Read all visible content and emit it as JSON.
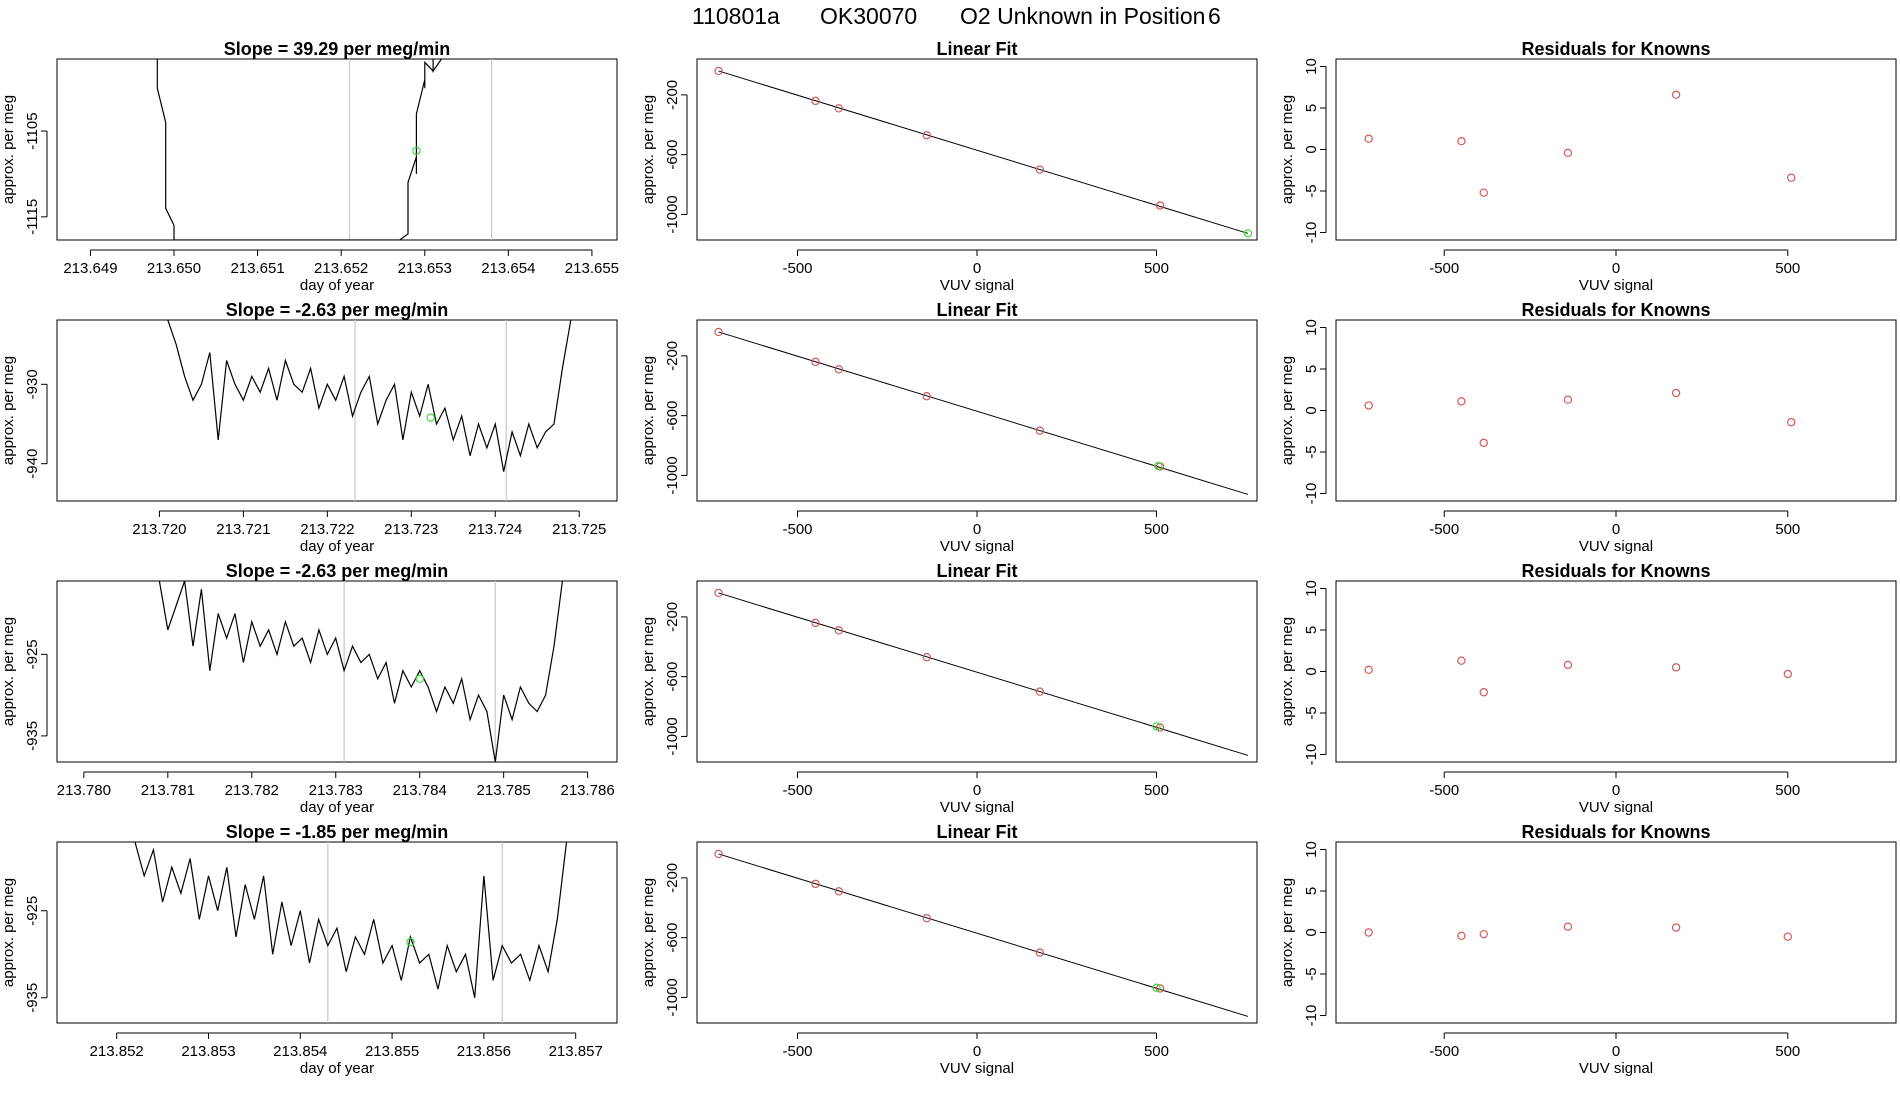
{
  "title": {
    "run_id": "110801a",
    "tank_id": "OK30070",
    "description": "O2 Unknown in Position",
    "position": "6"
  },
  "chart_data": [
    {
      "row": 1,
      "time_series": {
        "type": "line",
        "title": "Slope =  39.29  per meg/min",
        "xlabel": "day of year",
        "ylabel": "approx. per meg",
        "xlim": [
          213.6486,
          213.6553
        ],
        "ylim": [
          -1117.7,
          -1096.6
        ],
        "xticks": [
          "213.649",
          "213.650",
          "213.651",
          "213.652",
          "213.653",
          "213.654",
          "213.655"
        ],
        "xtick_values": [
          213.649,
          213.65,
          213.651,
          213.652,
          213.653,
          213.654,
          213.655
        ],
        "yticks": [
          "-1105",
          "-1115"
        ],
        "ytick_values": [
          -1105,
          -1115
        ],
        "vlines": [
          213.6521,
          213.6538
        ],
        "unknown_point": {
          "x": 213.6529,
          "y": -1107.3
        },
        "trace_x": [
          213.6498,
          213.6498,
          213.6499,
          213.6499,
          213.6499,
          213.6499,
          213.65,
          213.65,
          213.65,
          213.6527,
          213.6528,
          213.6528,
          213.6528,
          213.6529,
          213.6529,
          213.6529,
          213.6529,
          213.653,
          213.653,
          213.653,
          213.653,
          213.6531,
          213.6531,
          213.6531,
          213.6532
        ],
        "trace_y": [
          -1096.6,
          -1100,
          -1104,
          -1108,
          -1111,
          -1114,
          -1116,
          -1117,
          -1117.7,
          -1117.7,
          -1117,
          -1114,
          -1111,
          -1108,
          -1110,
          -1106,
          -1103,
          -1099,
          -1098,
          -1100,
          -1097,
          -1098,
          -1096.6,
          -1098,
          -1096.6
        ]
      },
      "linear_fit": {
        "type": "scatter",
        "title": "Linear Fit",
        "xlabel": "VUV signal",
        "ylabel": "approx. per meg",
        "xlim": [
          -780,
          780
        ],
        "ylim": [
          -1171,
          40
        ],
        "xticks": [
          "-500",
          "0",
          "500"
        ],
        "xtick_values": [
          -500,
          0,
          500
        ],
        "yticks": [
          "-200",
          "-600",
          "-1000"
        ],
        "ytick_values": [
          -200,
          -600,
          -1000
        ],
        "fit_line": {
          "x1": -720,
          "y1": -40,
          "x2": 755,
          "y2": -1127
        },
        "knowns": [
          {
            "x": -720,
            "y": -40
          },
          {
            "x": -450,
            "y": -240
          },
          {
            "x": -385,
            "y": -290
          },
          {
            "x": -140,
            "y": -470
          },
          {
            "x": 175,
            "y": -700
          },
          {
            "x": 510,
            "y": -940
          }
        ],
        "unknown": {
          "x": 755,
          "y": -1127
        }
      },
      "residuals": {
        "type": "scatter",
        "title": "Residuals for Knowns",
        "xlabel": "VUV signal",
        "ylabel": "approx. per meg",
        "xlim": [
          -815,
          815
        ],
        "ylim": [
          -10.9,
          10.9
        ],
        "xticks": [
          "-500",
          "0",
          "500"
        ],
        "xtick_values": [
          -500,
          0,
          500
        ],
        "yticks": [
          "10",
          "5",
          "0",
          "-5",
          "-10"
        ],
        "ytick_values": [
          10,
          5,
          0,
          -5,
          -10
        ],
        "points": [
          {
            "x": -720,
            "y": 1.3
          },
          {
            "x": -450,
            "y": 1.0
          },
          {
            "x": -385,
            "y": -5.2
          },
          {
            "x": -140,
            "y": -0.4
          },
          {
            "x": 175,
            "y": 6.6
          },
          {
            "x": 510,
            "y": -3.4
          }
        ]
      }
    },
    {
      "row": 2,
      "time_series": {
        "type": "line",
        "title": "Slope =  -2.63  per meg/min",
        "xlabel": "day of year",
        "ylabel": "approx. per meg",
        "xlim": [
          213.71878,
          213.72545
        ],
        "ylim": [
          -944.7,
          -921.9
        ],
        "xticks": [
          "213.720",
          "213.721",
          "213.722",
          "213.723",
          "213.724",
          "213.725"
        ],
        "xtick_values": [
          213.72,
          213.721,
          213.722,
          213.723,
          213.724,
          213.725
        ],
        "yticks": [
          "-930",
          "-940"
        ],
        "ytick_values": [
          -930,
          -940
        ],
        "vlines": [
          213.72233,
          213.72413
        ],
        "unknown_point": {
          "x": 213.72323,
          "y": -934.2
        },
        "trace_x": [
          213.7201,
          213.7202,
          213.7203,
          213.7204,
          213.7205,
          213.7206,
          213.7207,
          213.7208,
          213.7209,
          213.721,
          213.7211,
          213.7212,
          213.7213,
          213.7214,
          213.7215,
          213.7216,
          213.7217,
          213.7218,
          213.7219,
          213.722,
          213.7221,
          213.7222,
          213.7223,
          213.7224,
          213.7225,
          213.7226,
          213.7227,
          213.7228,
          213.7229,
          213.723,
          213.7231,
          213.7232,
          213.7233,
          213.7234,
          213.7235,
          213.7236,
          213.7237,
          213.7238,
          213.7239,
          213.724,
          213.7241,
          213.7242,
          213.7243,
          213.7244,
          213.7245,
          213.7246,
          213.7247,
          213.7248,
          213.7249
        ],
        "trace_y": [
          -921.9,
          -925,
          -929,
          -932,
          -930,
          -926,
          -937,
          -927,
          -930,
          -932,
          -929,
          -931,
          -928,
          -932,
          -927,
          -930,
          -931,
          -928,
          -933,
          -930,
          -932,
          -929,
          -934,
          -931,
          -929,
          -935,
          -932,
          -930,
          -937,
          -931,
          -934,
          -930,
          -935,
          -933,
          -937,
          -934,
          -939,
          -935,
          -938,
          -935,
          -941,
          -936,
          -939,
          -935,
          -938,
          -936,
          -935,
          -928,
          -921.9
        ]
      },
      "linear_fit": {
        "type": "scatter",
        "title": "Linear Fit",
        "xlabel": "VUV signal",
        "ylabel": "approx. per meg",
        "xlim": [
          -780,
          780
        ],
        "ylim": [
          -1171,
          40
        ],
        "xticks": [
          "-500",
          "0",
          "500"
        ],
        "xtick_values": [
          -500,
          0,
          500
        ],
        "yticks": [
          "-200",
          "-600",
          "-1000"
        ],
        "ytick_values": [
          -200,
          -600,
          -1000
        ],
        "fit_line": {
          "x1": -720,
          "y1": -40,
          "x2": 755,
          "y2": -1127
        },
        "knowns": [
          {
            "x": -720,
            "y": -40
          },
          {
            "x": -450,
            "y": -240
          },
          {
            "x": -385,
            "y": -290
          },
          {
            "x": -140,
            "y": -470
          },
          {
            "x": 175,
            "y": -700
          },
          {
            "x": 510,
            "y": -940
          }
        ],
        "unknown": {
          "x": 505,
          "y": -937
        }
      },
      "residuals": {
        "type": "scatter",
        "title": "Residuals for Knowns",
        "xlabel": "VUV signal",
        "ylabel": "approx. per meg",
        "xlim": [
          -815,
          815
        ],
        "ylim": [
          -10.9,
          10.9
        ],
        "xticks": [
          "-500",
          "0",
          "500"
        ],
        "xtick_values": [
          -500,
          0,
          500
        ],
        "yticks": [
          "10",
          "5",
          "0",
          "-5",
          "-10"
        ],
        "ytick_values": [
          10,
          5,
          0,
          -5,
          -10
        ],
        "points": [
          {
            "x": -720,
            "y": 0.6
          },
          {
            "x": -450,
            "y": 1.1
          },
          {
            "x": -385,
            "y": -3.9
          },
          {
            "x": -140,
            "y": 1.3
          },
          {
            "x": 175,
            "y": 2.1
          },
          {
            "x": 510,
            "y": -1.4
          }
        ]
      }
    },
    {
      "row": 3,
      "time_series": {
        "type": "line",
        "title": "Slope =  -2.63  per meg/min",
        "xlabel": "day of year",
        "ylabel": "approx. per meg",
        "xlim": [
          213.77968,
          213.78635
        ],
        "ylim": [
          -938.2,
          -916.0
        ],
        "xticks": [
          "213.780",
          "213.781",
          "213.782",
          "213.783",
          "213.784",
          "213.785",
          "213.786"
        ],
        "xtick_values": [
          213.78,
          213.781,
          213.782,
          213.783,
          213.784,
          213.785,
          213.786
        ],
        "yticks": [
          "-925",
          "-935"
        ],
        "ytick_values": [
          -925,
          -935
        ],
        "vlines": [
          213.7831,
          213.7849
        ],
        "unknown_point": {
          "x": 213.784,
          "y": -928.0
        },
        "trace_x": [
          213.7809,
          213.781,
          213.7811,
          213.7812,
          213.7813,
          213.7814,
          213.7815,
          213.7816,
          213.7817,
          213.7818,
          213.7819,
          213.782,
          213.7821,
          213.7822,
          213.7823,
          213.7824,
          213.7825,
          213.7826,
          213.7827,
          213.7828,
          213.7829,
          213.783,
          213.7831,
          213.7832,
          213.7833,
          213.7834,
          213.7835,
          213.7836,
          213.7837,
          213.7838,
          213.7839,
          213.784,
          213.7841,
          213.7842,
          213.7843,
          213.7844,
          213.7845,
          213.7846,
          213.7847,
          213.7848,
          213.7849,
          213.785,
          213.7851,
          213.7852,
          213.7853,
          213.7854,
          213.7855,
          213.7856,
          213.7857
        ],
        "trace_y": [
          -916.0,
          -922,
          -919,
          -916,
          -924,
          -917,
          -927,
          -920,
          -923,
          -920,
          -926,
          -921,
          -924,
          -922,
          -925,
          -921,
          -924,
          -923,
          -926,
          -922,
          -925,
          -923,
          -927,
          -924,
          -926,
          -925,
          -928,
          -926,
          -931,
          -927,
          -929,
          -927,
          -929,
          -932,
          -929,
          -931,
          -928,
          -933,
          -930,
          -932,
          -938.2,
          -930,
          -933,
          -929,
          -931,
          -932,
          -930,
          -924,
          -916.0
        ]
      },
      "linear_fit": {
        "type": "scatter",
        "title": "Linear Fit",
        "xlabel": "VUV signal",
        "ylabel": "approx. per meg",
        "xlim": [
          -780,
          780
        ],
        "ylim": [
          -1171,
          40
        ],
        "xticks": [
          "-500",
          "0",
          "500"
        ],
        "xtick_values": [
          -500,
          0,
          500
        ],
        "yticks": [
          "-200",
          "-600",
          "-1000"
        ],
        "ytick_values": [
          -200,
          -600,
          -1000
        ],
        "fit_line": {
          "x1": -720,
          "y1": -40,
          "x2": 755,
          "y2": -1127
        },
        "knowns": [
          {
            "x": -720,
            "y": -40
          },
          {
            "x": -450,
            "y": -240
          },
          {
            "x": -385,
            "y": -290
          },
          {
            "x": -140,
            "y": -470
          },
          {
            "x": 175,
            "y": -700
          },
          {
            "x": 510,
            "y": -940
          }
        ],
        "unknown": {
          "x": 500,
          "y": -933
        }
      },
      "residuals": {
        "type": "scatter",
        "title": "Residuals for Knowns",
        "xlabel": "VUV signal",
        "ylabel": "approx. per meg",
        "xlim": [
          -815,
          815
        ],
        "ylim": [
          -10.9,
          10.9
        ],
        "xticks": [
          "-500",
          "0",
          "500"
        ],
        "xtick_values": [
          -500,
          0,
          500
        ],
        "yticks": [
          "10",
          "5",
          "0",
          "-5",
          "-10"
        ],
        "ytick_values": [
          10,
          5,
          0,
          -5,
          -10
        ],
        "points": [
          {
            "x": -720,
            "y": 0.2
          },
          {
            "x": -450,
            "y": 1.3
          },
          {
            "x": -385,
            "y": -2.5
          },
          {
            "x": -140,
            "y": 0.8
          },
          {
            "x": 175,
            "y": 0.5
          },
          {
            "x": 500,
            "y": -0.3
          }
        ]
      }
    },
    {
      "row": 4,
      "time_series": {
        "type": "line",
        "title": "Slope =  -1.85  per meg/min",
        "xlabel": "day of year",
        "ylabel": "approx. per meg",
        "xlim": [
          213.85135,
          213.85745
        ],
        "ylim": [
          -937.9,
          -917.1
        ],
        "xticks": [
          "213.852",
          "213.853",
          "213.854",
          "213.855",
          "213.856",
          "213.857"
        ],
        "xtick_values": [
          213.852,
          213.853,
          213.854,
          213.855,
          213.856,
          213.857
        ],
        "yticks": [
          "-925",
          "-935"
        ],
        "ytick_values": [
          -925,
          -935
        ],
        "vlines": [
          213.8543,
          213.8562
        ],
        "unknown_point": {
          "x": 213.8552,
          "y": -928.6
        },
        "trace_x": [
          213.8522,
          213.8523,
          213.8524,
          213.8525,
          213.8526,
          213.8527,
          213.8528,
          213.8529,
          213.853,
          213.8531,
          213.8532,
          213.8533,
          213.8534,
          213.8535,
          213.8536,
          213.8537,
          213.8538,
          213.8539,
          213.854,
          213.8541,
          213.8542,
          213.8543,
          213.8544,
          213.8545,
          213.8546,
          213.8547,
          213.8548,
          213.8549,
          213.855,
          213.8551,
          213.8552,
          213.8553,
          213.8554,
          213.8555,
          213.8556,
          213.8557,
          213.8558,
          213.8559,
          213.856,
          213.8561,
          213.8562,
          213.8563,
          213.8564,
          213.8565,
          213.8566,
          213.8567,
          213.8568,
          213.8569
        ],
        "trace_y": [
          -917.1,
          -921,
          -918,
          -924,
          -920,
          -923,
          -919,
          -926,
          -921,
          -925,
          -920,
          -928,
          -922,
          -926,
          -921,
          -930,
          -924,
          -929,
          -925,
          -931,
          -926,
          -929,
          -927,
          -932,
          -928,
          -930,
          -926,
          -931,
          -929,
          -933,
          -928,
          -931,
          -930,
          -934,
          -929,
          -932,
          -930,
          -935,
          -921,
          -933,
          -929,
          -931,
          -930,
          -933,
          -929,
          -932,
          -926,
          -917.1
        ]
      },
      "linear_fit": {
        "type": "scatter",
        "title": "Linear Fit",
        "xlabel": "VUV signal",
        "ylabel": "approx. per meg",
        "xlim": [
          -780,
          780
        ],
        "ylim": [
          -1171,
          40
        ],
        "xticks": [
          "-500",
          "0",
          "500"
        ],
        "xtick_values": [
          -500,
          0,
          500
        ],
        "yticks": [
          "-200",
          "-600",
          "-1000"
        ],
        "ytick_values": [
          -200,
          -600,
          -1000
        ],
        "fit_line": {
          "x1": -720,
          "y1": -40,
          "x2": 755,
          "y2": -1127
        },
        "knowns": [
          {
            "x": -720,
            "y": -40
          },
          {
            "x": -450,
            "y": -240
          },
          {
            "x": -385,
            "y": -290
          },
          {
            "x": -140,
            "y": -470
          },
          {
            "x": 175,
            "y": -700
          },
          {
            "x": 510,
            "y": -940
          }
        ],
        "unknown": {
          "x": 500,
          "y": -935
        }
      },
      "residuals": {
        "type": "scatter",
        "title": "Residuals for Knowns",
        "xlabel": "VUV signal",
        "ylabel": "approx. per meg",
        "xlim": [
          -815,
          815
        ],
        "ylim": [
          -10.9,
          10.9
        ],
        "xticks": [
          "-500",
          "0",
          "500"
        ],
        "xtick_values": [
          -500,
          0,
          500
        ],
        "yticks": [
          "10",
          "5",
          "0",
          "-5",
          "-10"
        ],
        "points": [
          {
            "x": -720,
            "y": 0.0
          },
          {
            "x": -450,
            "y": -0.4
          },
          {
            "x": -385,
            "y": -0.2
          },
          {
            "x": -140,
            "y": 0.7
          },
          {
            "x": 175,
            "y": 0.6
          },
          {
            "x": 500,
            "y": -0.5
          }
        ]
      }
    }
  ]
}
